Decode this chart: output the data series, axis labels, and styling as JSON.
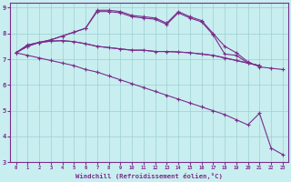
{
  "background_color": "#c8eef0",
  "line_color": "#7b2d8b",
  "grid_color": "#9ecfcf",
  "xlabel": "Windchill (Refroidissement éolien,°C)",
  "xlim": [
    -0.5,
    23.5
  ],
  "ylim": [
    3,
    9.2
  ],
  "xticks": [
    0,
    1,
    2,
    3,
    4,
    5,
    6,
    7,
    8,
    9,
    10,
    11,
    12,
    13,
    14,
    15,
    16,
    17,
    18,
    19,
    20,
    21,
    22,
    23
  ],
  "yticks": [
    3,
    4,
    5,
    6,
    7,
    8,
    9
  ],
  "line_peaked_x": [
    0,
    1,
    2,
    3,
    4,
    5,
    6,
    7,
    8,
    9,
    10,
    11,
    12,
    13,
    14,
    15,
    16,
    17,
    18,
    19,
    20,
    21,
    22,
    23
  ],
  "line_peaked_y": [
    7.25,
    7.5,
    7.65,
    7.75,
    7.9,
    8.05,
    8.2,
    8.9,
    8.9,
    8.85,
    8.7,
    8.65,
    8.6,
    8.4,
    8.85,
    8.65,
    8.5,
    8.0,
    7.5,
    7.25,
    6.9,
    6.7,
    6.65,
    6.6
  ],
  "line_curved_x": [
    0,
    1,
    2,
    3,
    4,
    5,
    6,
    7,
    8,
    9,
    10,
    11,
    12,
    13,
    14,
    15,
    16,
    17,
    18,
    19,
    20,
    21
  ],
  "line_curved_y": [
    7.25,
    7.5,
    7.65,
    7.75,
    7.9,
    8.05,
    8.2,
    8.85,
    8.85,
    8.8,
    8.65,
    8.6,
    8.55,
    8.35,
    8.8,
    8.6,
    8.45,
    7.95,
    7.2,
    7.15,
    6.85,
    6.75
  ],
  "line_flat_x": [
    0,
    1,
    2,
    3,
    4,
    5,
    6,
    7,
    8,
    9,
    10,
    11,
    12,
    13,
    14,
    15,
    16,
    17,
    18,
    19,
    20,
    21
  ],
  "line_flat_y": [
    7.25,
    7.55,
    7.65,
    7.7,
    7.72,
    7.68,
    7.6,
    7.5,
    7.45,
    7.4,
    7.35,
    7.35,
    7.3,
    7.3,
    7.28,
    7.25,
    7.2,
    7.15,
    7.05,
    6.95,
    6.85,
    6.75
  ],
  "line_flat2_x": [
    0,
    1,
    2,
    3,
    4,
    5,
    6,
    7,
    8,
    9,
    10,
    11,
    12,
    13,
    14,
    15,
    16,
    17,
    18,
    19,
    20,
    21
  ],
  "line_flat2_y": [
    7.25,
    7.55,
    7.65,
    7.7,
    7.72,
    7.68,
    7.6,
    7.5,
    7.45,
    7.4,
    7.35,
    7.35,
    7.3,
    7.3,
    7.28,
    7.25,
    7.2,
    7.15,
    7.05,
    6.95,
    6.85,
    6.75
  ],
  "line_diag_x": [
    0,
    1,
    2,
    3,
    4,
    5,
    6,
    7,
    8,
    9,
    10,
    11,
    12,
    13,
    14,
    15,
    16,
    17,
    18,
    19,
    20,
    21,
    22,
    23
  ],
  "line_diag_y": [
    7.25,
    7.15,
    7.05,
    6.95,
    6.85,
    6.75,
    6.6,
    6.5,
    6.35,
    6.2,
    6.05,
    5.9,
    5.75,
    5.6,
    5.45,
    5.3,
    5.15,
    5.0,
    4.85,
    4.65,
    4.45,
    4.9,
    3.55,
    3.3
  ]
}
